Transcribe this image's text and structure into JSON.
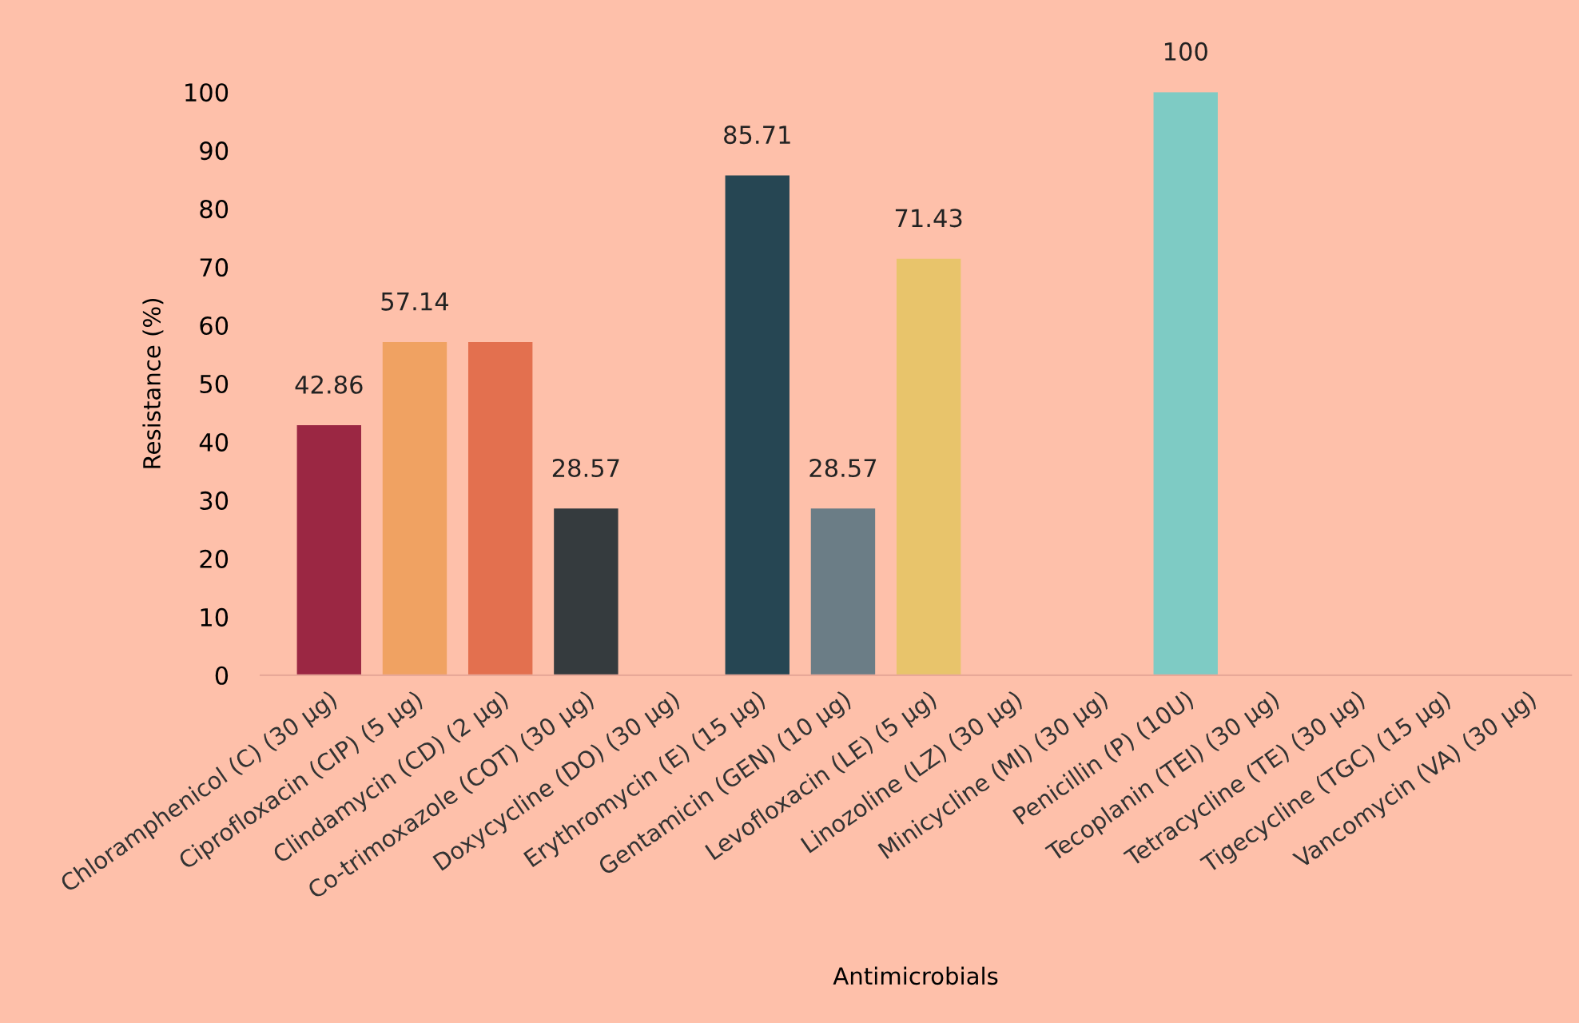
{
  "chart_data": {
    "type": "bar",
    "xlabel": "Antimicrobials",
    "ylabel": "Resistance (%)",
    "categories": [
      "Chloramphenicol (C) (30 µg)",
      "Ciprofloxacin (CIP) (5 µg)",
      "Clindamycin (CD) (2 µg)",
      "Co-trimoxazole (COT) (30 µg)",
      "Doxycycline (DO) (30 µg)",
      "Erythromycin (E) (15 µg)",
      "Gentamicin (GEN) (10 µg)",
      "Levofloxacin (LE) (5 µg)",
      "Linozoline (LZ) (30 µg)",
      "Minicycline (MI) (30 µg)",
      "Penicillin (P) (10U)",
      "Tecoplanin (TEI) (30 µg)",
      "Tetracycline (TE) (30 µg)",
      "Tigecycline (TGC) (15 µg)",
      "Vancomycin (VA) (30 µg)"
    ],
    "values": [
      42.86,
      57.14,
      57.14,
      28.57,
      0,
      85.71,
      28.57,
      71.43,
      0,
      0,
      100,
      0,
      0,
      0,
      0
    ],
    "value_labels": [
      "42.86",
      "57.14",
      null,
      "28.57",
      null,
      "85.71",
      "28.57",
      "71.43",
      null,
      null,
      "100",
      null,
      null,
      null,
      null
    ],
    "colors": [
      "#9b2743",
      "#f0a262",
      "#e3704f",
      "#353b3e",
      "#343a3e",
      "#264653",
      "#6b7d86",
      "#e8c46b",
      "#e8c46b",
      "#e8c46b",
      "#7ecbc4",
      "#7ecbc4",
      "#7ecbc4",
      "#7ecbc4",
      "#7ecbc4"
    ],
    "ylim": [
      0,
      100
    ],
    "yticks": [
      0,
      10,
      20,
      30,
      40,
      50,
      60,
      70,
      80,
      90,
      100
    ],
    "grid": false,
    "legend": false
  }
}
